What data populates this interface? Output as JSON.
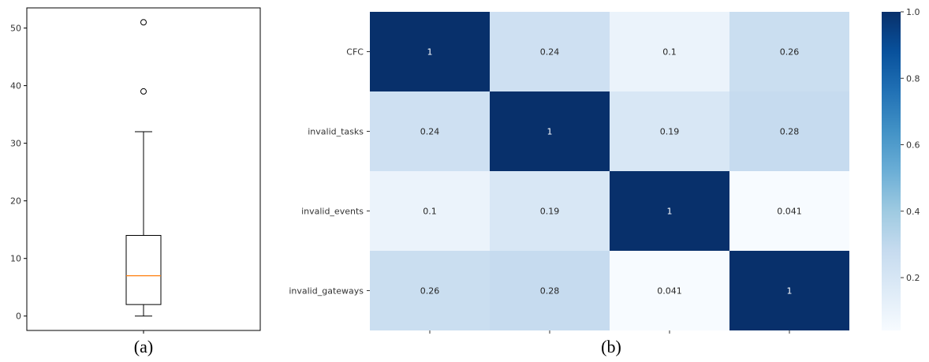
{
  "chart_data": [
    {
      "panel": "(a)",
      "type": "boxplot",
      "ylim": [
        -2.5,
        53.5
      ],
      "yticks": [
        0,
        10,
        20,
        30,
        40,
        50
      ],
      "box": {
        "whisker_low": 0,
        "q1": 2,
        "median": 7,
        "q3": 14,
        "whisker_high": 32
      },
      "outliers": [
        39,
        51
      ],
      "colors": {
        "median": "#ff7f0e",
        "box": "#000000"
      }
    },
    {
      "panel": "(b)",
      "type": "heatmap",
      "row_labels": [
        "CFC",
        "invalid_tasks",
        "invalid_events",
        "invalid_gateways"
      ],
      "col_labels": [
        "",
        "",
        "",
        ""
      ],
      "values": [
        [
          1,
          0.24,
          0.1,
          0.26
        ],
        [
          0.24,
          1,
          0.19,
          0.28
        ],
        [
          0.1,
          0.19,
          1,
          0.041
        ],
        [
          0.26,
          0.28,
          0.041,
          1
        ]
      ],
      "cell_text": [
        [
          "1",
          "0.24",
          "0.1",
          "0.26"
        ],
        [
          "0.24",
          "1",
          "0.19",
          "0.28"
        ],
        [
          "0.1",
          "0.19",
          "1",
          "0.041"
        ],
        [
          "0.26",
          "0.28",
          "0.041",
          "1"
        ]
      ],
      "colormap": "Blues",
      "colorbar": {
        "ticks": [
          "0.2",
          "0.4",
          "0.6",
          "0.8",
          "1.0"
        ],
        "tick_values": [
          0.2,
          0.4,
          0.6,
          0.8,
          1.0
        ],
        "range": [
          0.041,
          1.0
        ]
      }
    }
  ],
  "captions": {
    "a": "(a)",
    "b": "(b)"
  }
}
